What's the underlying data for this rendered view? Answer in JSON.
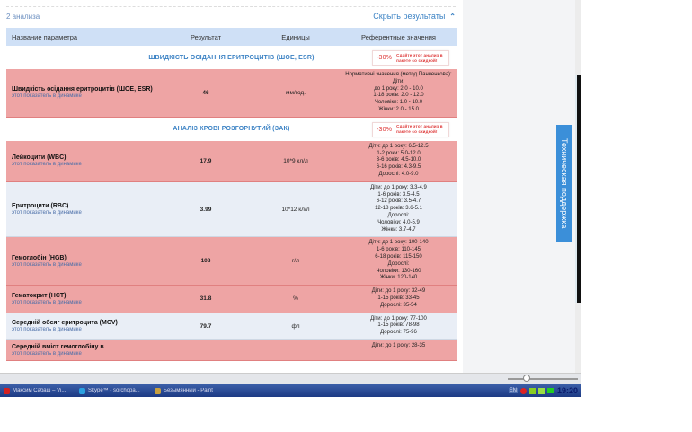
{
  "results": {
    "count_label": "2 анализа",
    "hide_label": "Скрыть результаты",
    "hide_icon": "chevron-up-icon"
  },
  "table": {
    "headers": [
      "Название параметра",
      "Результат",
      "Единицы",
      "Референтные значения"
    ],
    "dynamics_link": "этот показатель в динамике",
    "promo": {
      "discount": "-30%",
      "text": "Сдайте этот анализ в пакете со скидкой!"
    },
    "sections": [
      {
        "title": "ШВИДКІСТЬ ОСІДАННЯ ЕРИТРОЦИТІВ (ШОЕ, ESR)",
        "rows": [
          {
            "name": "Швидкість осідання еритроцитів (ШОЕ, ESR)",
            "value": "46",
            "units": "мм/год.",
            "status": "bad",
            "ref": [
              "Нормативні значення (метод Панченкова):",
              "Діти:",
              "до 1 року: 2.0 - 10.0",
              "1-18 років: 2.0 - 12.0",
              "Чоловіки: 1.0 - 10.0",
              "Жінки: 2.0 - 15.0"
            ]
          }
        ]
      },
      {
        "title": "АНАЛІЗ КРОВІ РОЗГОРНУТИЙ (ЗАК)",
        "rows": [
          {
            "name": "Лейкоцити (WBC)",
            "value": "17.9",
            "units": "10*9 кл/л",
            "status": "bad",
            "ref": [
              "Діти: до 1 року: 6.5-12.5",
              "1-2 роки: 5.0-12.0",
              "3-6 років: 4.5-10.0",
              "6-16 років: 4.3-9.5",
              "Дорослі: 4.0-9.0"
            ]
          },
          {
            "name": "Еритроцити (RBC)",
            "value": "3.99",
            "units": "10*12 кл/л",
            "status": "ok",
            "ref": [
              "Діти: до 1 року: 3.3-4.9",
              "1-6 років: 3.5-4.5",
              "6-12 років: 3.5-4.7",
              "12-18 років: 3.6-5.1",
              "Дорослі:",
              "Чоловіки: 4.0-5.9",
              "Жінки: 3.7-4.7"
            ]
          },
          {
            "name": "Гемоглобін (HGB)",
            "value": "108",
            "units": "г/л",
            "status": "bad",
            "ref": [
              "Діти: до 1 року: 100-140",
              "1-6 років: 110-145",
              "6-18 років: 115-150",
              "Дорослі:",
              "Чоловіки: 130-160",
              "Жінки: 120-140"
            ]
          },
          {
            "name": "Гематокрит (HCT)",
            "value": "31.8",
            "units": "%",
            "status": "bad",
            "ref": [
              "Діти: до 1 року: 32-49",
              "1-15 років: 33-45",
              "Дорослі: 35-54"
            ]
          },
          {
            "name": "Середній обсяг еритроцита (MCV)",
            "value": "79.7",
            "units": "фл",
            "status": "ok",
            "ref": [
              "Діти: до 1 року: 77-100",
              "1-15 років: 78-98",
              "Дорослі: 75-96"
            ]
          },
          {
            "name": "Середній вміст гемоглобіну в",
            "value": "",
            "units": "",
            "status": "bad",
            "ref": [
              "Діти: до 1 року: 28-35",
              ""
            ]
          }
        ]
      }
    ]
  },
  "support_tab": "Техническая поддержка",
  "taskbar": {
    "tasks": [
      {
        "label": "Максим Сабаш – Vi...",
        "color": "#d32020"
      },
      {
        "label": "Skype™ - sorchopa...",
        "color": "#2aa0e0"
      },
      {
        "label": "Безымянный - Paint",
        "color": "#c8a040"
      }
    ],
    "lang": "EN",
    "clock": "19:20"
  },
  "colors": {
    "accent": "#3b82c4",
    "abnormal_row": "#eea4a4",
    "normal_row": "#e9eef6",
    "header": "#cfe0f6"
  }
}
